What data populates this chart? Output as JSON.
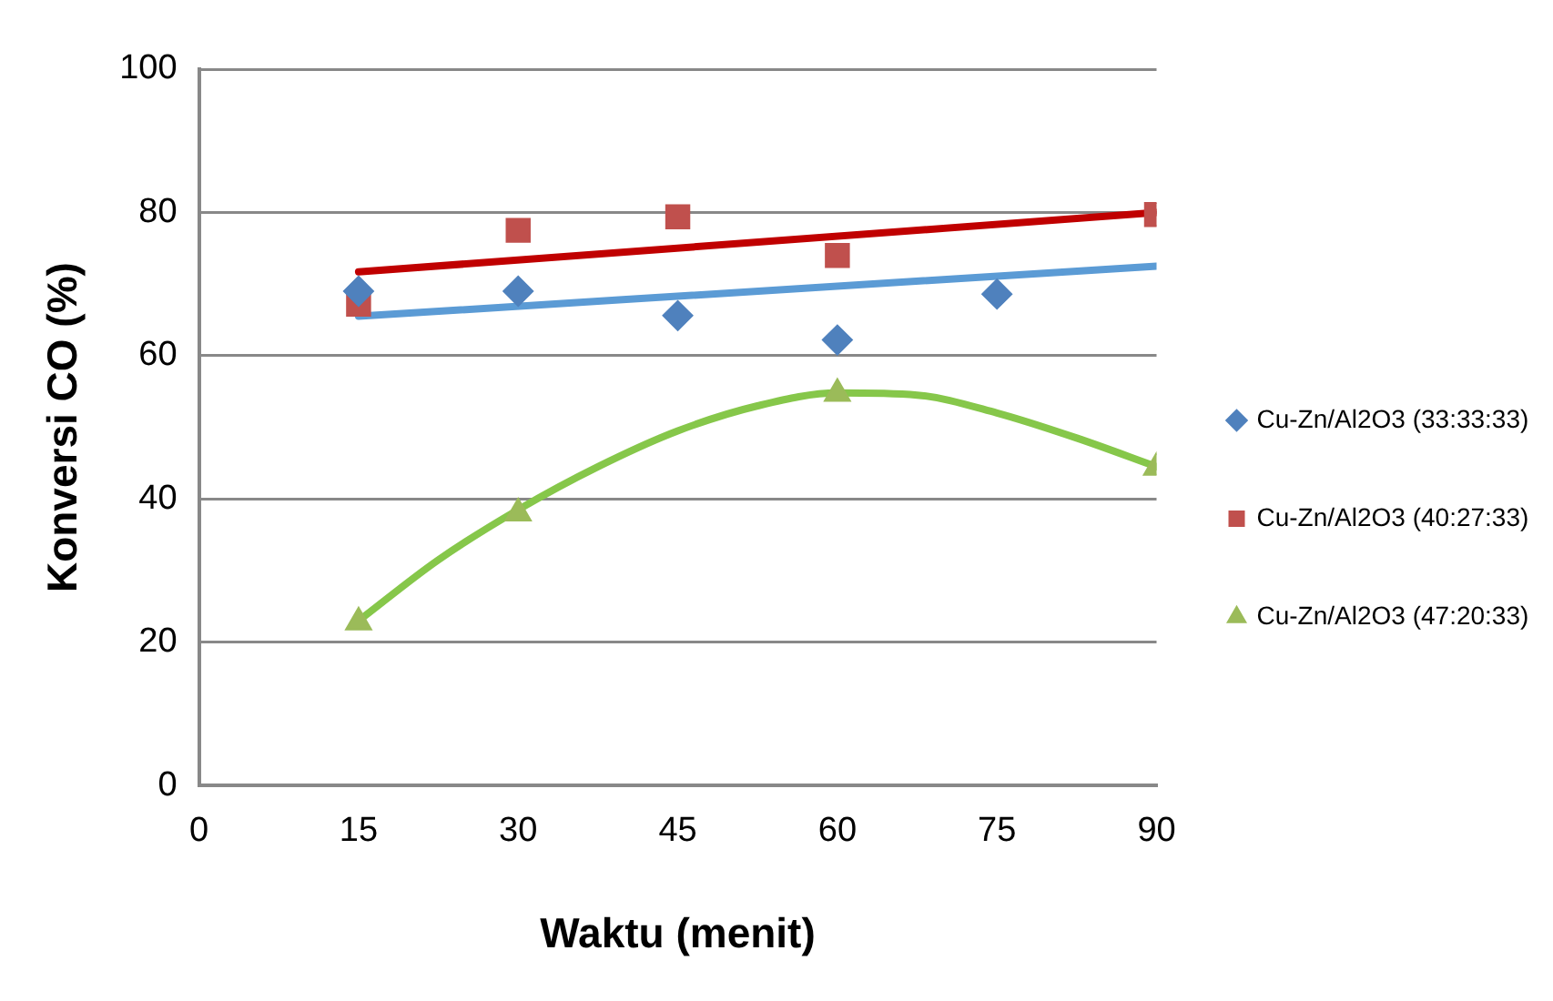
{
  "chart_data": {
    "type": "scatter",
    "xlabel": "Waktu (menit)",
    "ylabel": "Konversi CO (%)",
    "x": [
      15,
      30,
      45,
      60,
      75,
      90
    ],
    "series": [
      {
        "name": "Cu-Zn/Al2O3 (33:33:33)",
        "color": "#4f81bd",
        "marker": "diamond",
        "values": [
          69,
          69,
          65.6,
          62.2,
          68.6,
          null
        ]
      },
      {
        "name": "Cu-Zn/Al2O3 (40:27:33)",
        "color": "#c0504d",
        "marker": "square",
        "values": [
          67.2,
          77.5,
          79.4,
          74,
          null,
          79.7
        ]
      },
      {
        "name": "Cu-Zn/Al2O3 (47:20:33)",
        "color": "#9bbb59",
        "marker": "triangle",
        "values": [
          22.8,
          38,
          null,
          54.7,
          null,
          44.4
        ]
      },
      {
        "type": "line",
        "color": "#5b9bd5",
        "x": [
          15,
          90
        ],
        "values": [
          65.5,
          72.5
        ]
      },
      {
        "type": "line",
        "color": "#c00000",
        "x": [
          15,
          90
        ],
        "values": [
          71.7,
          80
        ]
      },
      {
        "type": "line",
        "color": "#86c74a",
        "x": [
          15,
          22.5,
          30,
          37.5,
          45,
          52.5,
          60,
          67.5,
          75,
          82.5,
          90
        ],
        "values": [
          23,
          31.5,
          38.5,
          44.5,
          49.5,
          53,
          54.8,
          54.5,
          52,
          48.5,
          44.5
        ]
      }
    ],
    "xlim": [
      0,
      90
    ],
    "xticks": [
      0,
      15,
      30,
      45,
      60,
      75,
      90
    ],
    "ylim": [
      0,
      100
    ],
    "yticks": [
      0,
      20,
      40,
      60,
      80,
      100
    ],
    "grid": "y",
    "legend": "right"
  }
}
